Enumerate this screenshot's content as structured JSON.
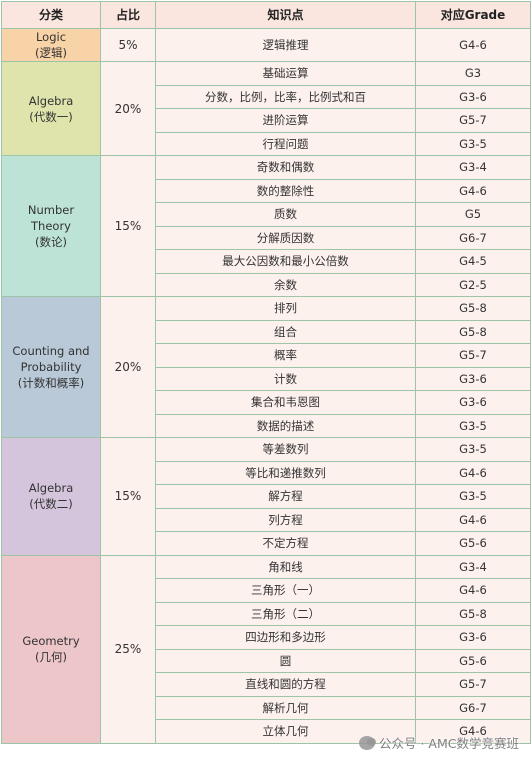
{
  "header": {
    "category": "分类",
    "ratio": "占比",
    "topic": "知识点",
    "grade": "对应Grade"
  },
  "groups": [
    {
      "name": "Logic\n(逻辑)",
      "ratio": "5%",
      "color": "#f9d3a8",
      "topics": [
        {
          "topic": "逻辑推理",
          "grade": "G4-6"
        }
      ]
    },
    {
      "name": "Algebra\n(代数一)",
      "ratio": "20%",
      "color": "#dfe3ac",
      "topics": [
        {
          "topic": "基础运算",
          "grade": "G3"
        },
        {
          "topic": "分数，比例，比率，比例式和百",
          "grade": "G3-6"
        },
        {
          "topic": "进阶运算",
          "grade": "G5-7"
        },
        {
          "topic": "行程问题",
          "grade": "G3-5"
        }
      ]
    },
    {
      "name": "Number\nTheory\n(数论)",
      "ratio": "15%",
      "color": "#bde3d6",
      "topics": [
        {
          "topic": "奇数和偶数",
          "grade": "G3-4"
        },
        {
          "topic": "数的整除性",
          "grade": "G4-6"
        },
        {
          "topic": "质数",
          "grade": "G5"
        },
        {
          "topic": "分解质因数",
          "grade": "G6-7"
        },
        {
          "topic": "最大公因数和最小公倍数",
          "grade": "G4-5"
        },
        {
          "topic": "余数",
          "grade": "G2-5"
        }
      ]
    },
    {
      "name": "Counting and\nProbability\n(计数和概率)",
      "ratio": "20%",
      "color": "#b9c9d8",
      "topics": [
        {
          "topic": "排列",
          "grade": "G5-8"
        },
        {
          "topic": "组合",
          "grade": "G5-8"
        },
        {
          "topic": "概率",
          "grade": "G5-7"
        },
        {
          "topic": "计数",
          "grade": "G3-6"
        },
        {
          "topic": "集合和韦恩图",
          "grade": "G3-6"
        },
        {
          "topic": "数据的描述",
          "grade": "G3-5"
        }
      ]
    },
    {
      "name": "Algebra\n(代数二)",
      "ratio": "15%",
      "color": "#d4c5dc",
      "topics": [
        {
          "topic": "等差数列",
          "grade": "G3-5"
        },
        {
          "topic": "等比和递推数列",
          "grade": "G4-6"
        },
        {
          "topic": "解方程",
          "grade": "G3-5"
        },
        {
          "topic": "列方程",
          "grade": "G4-6"
        },
        {
          "topic": "不定方程",
          "grade": "G5-6"
        }
      ]
    },
    {
      "name": "Geometry\n(几何)",
      "ratio": "25%",
      "color": "#ecc6c8",
      "topics": [
        {
          "topic": "角和线",
          "grade": "G3-4"
        },
        {
          "topic": "三角形（一）",
          "grade": "G4-6"
        },
        {
          "topic": "三角形（二）",
          "grade": "G5-8"
        },
        {
          "topic": "四边形和多边形",
          "grade": "G3-6"
        },
        {
          "topic": "圆",
          "grade": "G5-6"
        },
        {
          "topic": "直线和圆的方程",
          "grade": "G5-7"
        },
        {
          "topic": "解析几何",
          "grade": "G6-7"
        },
        {
          "topic": "立体几何",
          "grade": "G4-6"
        }
      ]
    }
  ],
  "watermark": {
    "text": "公众号 · AMC数学竞赛班",
    "icon": "wechat-icon"
  }
}
